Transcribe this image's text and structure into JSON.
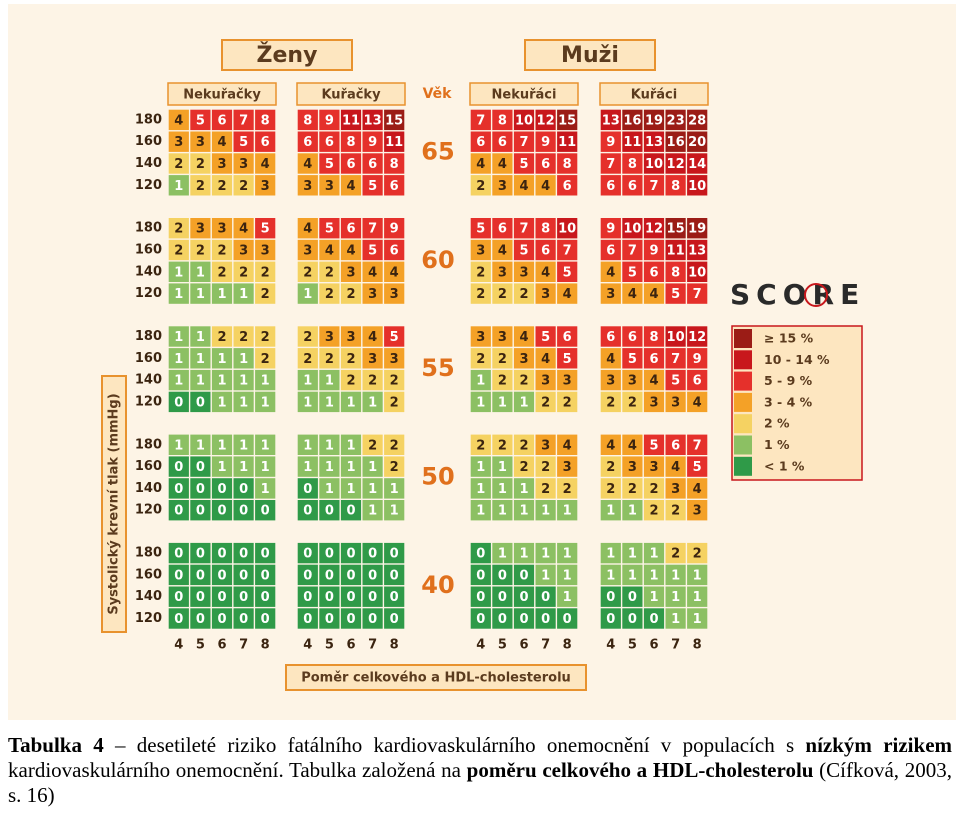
{
  "header": {
    "women": "Ženy",
    "men": "Muži",
    "age_label": "Věk"
  },
  "subgroups": [
    "Nekuřačky",
    "Kuřačky",
    "Nekuřáci",
    "Kuřáci"
  ],
  "ages": [
    65,
    60,
    55,
    50,
    40
  ],
  "bp": [
    180,
    160,
    140,
    120
  ],
  "chol": [
    4,
    5,
    6,
    7,
    8
  ],
  "values": [
    [
      [
        [
          4,
          5,
          6,
          7,
          8
        ],
        [
          3,
          3,
          4,
          5,
          6
        ],
        [
          2,
          2,
          3,
          3,
          4
        ],
        [
          1,
          2,
          2,
          2,
          3
        ]
      ],
      [
        [
          8,
          9,
          11,
          13,
          15
        ],
        [
          6,
          6,
          8,
          9,
          11
        ],
        [
          4,
          5,
          6,
          6,
          8
        ],
        [
          3,
          3,
          4,
          5,
          6
        ]
      ],
      [
        [
          7,
          8,
          10,
          12,
          15
        ],
        [
          6,
          6,
          7,
          9,
          11
        ],
        [
          4,
          4,
          5,
          6,
          8
        ],
        [
          2,
          3,
          4,
          4,
          6
        ]
      ],
      [
        [
          13,
          16,
          19,
          23,
          28
        ],
        [
          9,
          11,
          13,
          16,
          20
        ],
        [
          7,
          8,
          10,
          12,
          14
        ],
        [
          6,
          6,
          7,
          8,
          10
        ]
      ]
    ],
    [
      [
        [
          2,
          3,
          3,
          4,
          5
        ],
        [
          2,
          2,
          2,
          3,
          3
        ],
        [
          1,
          1,
          2,
          2,
          2
        ],
        [
          1,
          1,
          1,
          1,
          2
        ]
      ],
      [
        [
          4,
          5,
          6,
          7,
          9
        ],
        [
          3,
          4,
          4,
          5,
          6
        ],
        [
          2,
          2,
          3,
          4,
          4
        ],
        [
          1,
          2,
          2,
          3,
          3
        ]
      ],
      [
        [
          5,
          6,
          7,
          8,
          10
        ],
        [
          3,
          4,
          5,
          6,
          7
        ],
        [
          2,
          3,
          3,
          4,
          5
        ],
        [
          2,
          2,
          2,
          3,
          4
        ]
      ],
      [
        [
          9,
          10,
          12,
          15,
          19
        ],
        [
          6,
          7,
          9,
          11,
          13
        ],
        [
          4,
          5,
          6,
          8,
          10
        ],
        [
          3,
          4,
          4,
          5,
          7
        ]
      ]
    ],
    [
      [
        [
          1,
          1,
          2,
          2,
          2
        ],
        [
          1,
          1,
          1,
          1,
          2
        ],
        [
          1,
          1,
          1,
          1,
          1
        ],
        [
          0,
          0,
          1,
          1,
          1
        ]
      ],
      [
        [
          2,
          3,
          3,
          4,
          5
        ],
        [
          2,
          2,
          2,
          3,
          3
        ],
        [
          1,
          1,
          2,
          2,
          2
        ],
        [
          1,
          1,
          1,
          1,
          2
        ]
      ],
      [
        [
          3,
          3,
          4,
          5,
          6
        ],
        [
          2,
          2,
          3,
          4,
          5
        ],
        [
          1,
          2,
          2,
          3,
          3
        ],
        [
          1,
          1,
          1,
          2,
          2
        ]
      ],
      [
        [
          6,
          6,
          8,
          10,
          12
        ],
        [
          4,
          5,
          6,
          7,
          9
        ],
        [
          3,
          3,
          4,
          5,
          6
        ],
        [
          2,
          2,
          3,
          3,
          4
        ]
      ]
    ],
    [
      [
        [
          1,
          1,
          1,
          1,
          1
        ],
        [
          0,
          0,
          1,
          1,
          1
        ],
        [
          0,
          0,
          0,
          0,
          1
        ],
        [
          0,
          0,
          0,
          0,
          0
        ]
      ],
      [
        [
          1,
          1,
          1,
          2,
          2
        ],
        [
          1,
          1,
          1,
          1,
          2
        ],
        [
          0,
          1,
          1,
          1,
          1
        ],
        [
          0,
          0,
          0,
          1,
          1
        ]
      ],
      [
        [
          2,
          2,
          2,
          3,
          4
        ],
        [
          1,
          1,
          2,
          2,
          3
        ],
        [
          1,
          1,
          1,
          2,
          2
        ],
        [
          1,
          1,
          1,
          1,
          1
        ]
      ],
      [
        [
          4,
          4,
          5,
          6,
          7
        ],
        [
          2,
          3,
          3,
          4,
          5
        ],
        [
          2,
          2,
          2,
          3,
          4
        ],
        [
          1,
          1,
          2,
          2,
          3
        ]
      ]
    ],
    [
      [
        [
          0,
          0,
          0,
          0,
          0
        ],
        [
          0,
          0,
          0,
          0,
          0
        ],
        [
          0,
          0,
          0,
          0,
          0
        ],
        [
          0,
          0,
          0,
          0,
          0
        ]
      ],
      [
        [
          0,
          0,
          0,
          0,
          0
        ],
        [
          0,
          0,
          0,
          0,
          0
        ],
        [
          0,
          0,
          0,
          0,
          0
        ],
        [
          0,
          0,
          0,
          0,
          0
        ]
      ],
      [
        [
          0,
          1,
          1,
          1,
          1
        ],
        [
          0,
          0,
          0,
          1,
          1
        ],
        [
          0,
          0,
          0,
          0,
          1
        ],
        [
          0,
          0,
          0,
          0,
          0
        ]
      ],
      [
        [
          1,
          1,
          1,
          2,
          2
        ],
        [
          1,
          1,
          1,
          1,
          1
        ],
        [
          0,
          0,
          1,
          1,
          1
        ],
        [
          0,
          0,
          0,
          1,
          1
        ]
      ]
    ]
  ],
  "y_axis_label": "Systolický krevní tlak (mmHg)",
  "x_axis_label": "Poměr celkového a HDL-cholesterolu",
  "logo": "SCORE",
  "legend": [
    {
      "label": "≥ 15 %",
      "color": "#9b1c16",
      "text_color": "#ffffff",
      "min": 15
    },
    {
      "label": "10 - 14 %",
      "color": "#c8171c",
      "text_color": "#ffffff",
      "min": 10
    },
    {
      "label": "5 - 9 %",
      "color": "#e5302b",
      "text_color": "#ffffff",
      "min": 5
    },
    {
      "label": "3 - 4 %",
      "color": "#f4a127",
      "text_color": "#3b2410",
      "min": 3
    },
    {
      "label": "2 %",
      "color": "#f5d262",
      "text_color": "#3b2410",
      "min": 2
    },
    {
      "label": "1 %",
      "color": "#8cc063",
      "text_color": "#ffffff",
      "min": 1
    },
    {
      "label": "< 1 %",
      "color": "#2f9a48",
      "text_color": "#ffffff"
    }
  ],
  "caption": [
    "Tabulka 4",
    " – desetileté riziko fatálního kardiovaskulárního onemocnění v populacích s ",
    "nízkým rizikem",
    " kardiovaskulárního onemocnění. Tabulka založená na ",
    "poměru celkového a HDL-cholesterolu",
    " (Cífková, 2003, s. 16)"
  ]
}
